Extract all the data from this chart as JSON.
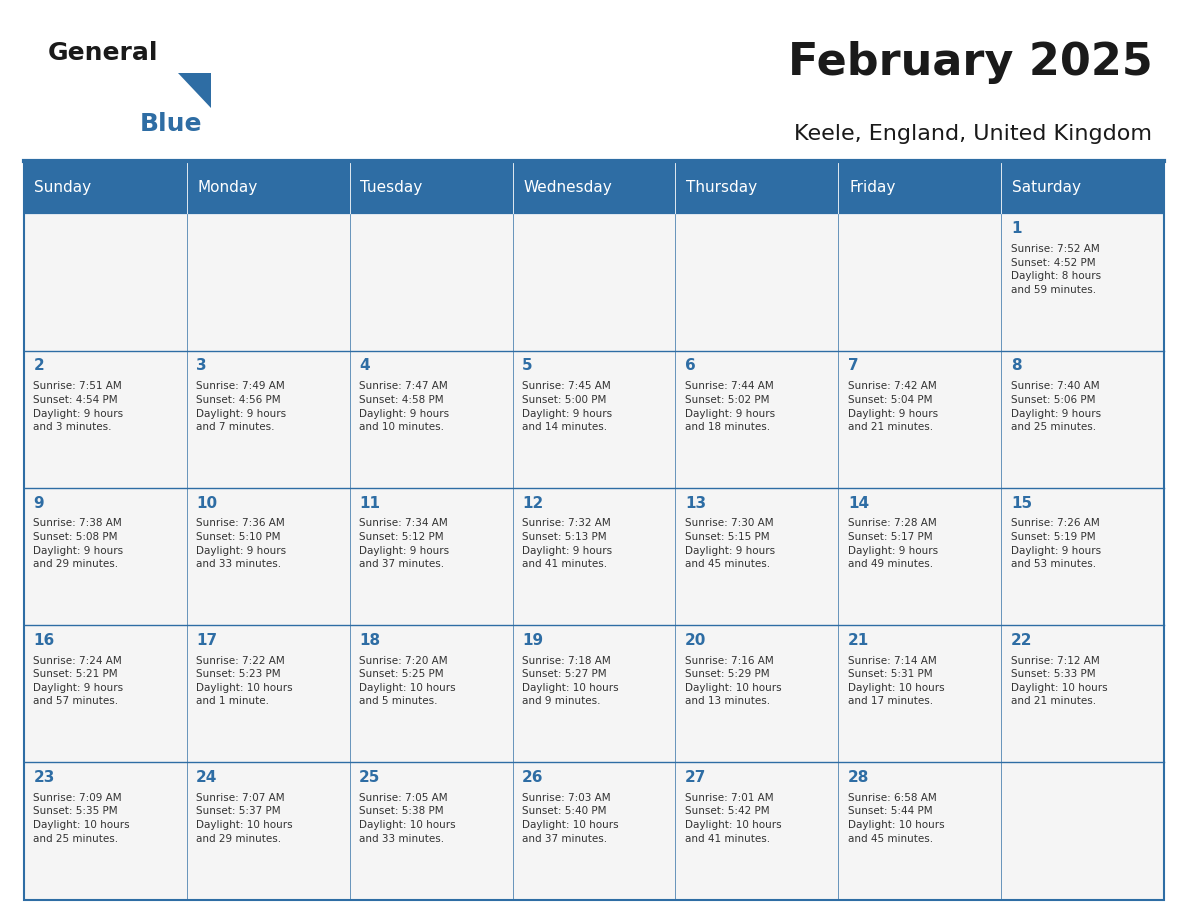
{
  "title": "February 2025",
  "subtitle": "Keele, England, United Kingdom",
  "days_of_week": [
    "Sunday",
    "Monday",
    "Tuesday",
    "Wednesday",
    "Thursday",
    "Friday",
    "Saturday"
  ],
  "header_bg": "#2E6DA4",
  "header_text": "#FFFFFF",
  "cell_bg": "#F5F5F5",
  "border_color": "#2E6DA4",
  "day_number_color": "#2E6DA4",
  "text_color": "#333333",
  "title_color": "#1a1a1a",
  "logo_text_color": "#1a1a1a",
  "logo_blue_color": "#2E6DA4",
  "weeks": [
    [
      {
        "day": null,
        "info": null
      },
      {
        "day": null,
        "info": null
      },
      {
        "day": null,
        "info": null
      },
      {
        "day": null,
        "info": null
      },
      {
        "day": null,
        "info": null
      },
      {
        "day": null,
        "info": null
      },
      {
        "day": 1,
        "info": "Sunrise: 7:52 AM\nSunset: 4:52 PM\nDaylight: 8 hours\nand 59 minutes."
      }
    ],
    [
      {
        "day": 2,
        "info": "Sunrise: 7:51 AM\nSunset: 4:54 PM\nDaylight: 9 hours\nand 3 minutes."
      },
      {
        "day": 3,
        "info": "Sunrise: 7:49 AM\nSunset: 4:56 PM\nDaylight: 9 hours\nand 7 minutes."
      },
      {
        "day": 4,
        "info": "Sunrise: 7:47 AM\nSunset: 4:58 PM\nDaylight: 9 hours\nand 10 minutes."
      },
      {
        "day": 5,
        "info": "Sunrise: 7:45 AM\nSunset: 5:00 PM\nDaylight: 9 hours\nand 14 minutes."
      },
      {
        "day": 6,
        "info": "Sunrise: 7:44 AM\nSunset: 5:02 PM\nDaylight: 9 hours\nand 18 minutes."
      },
      {
        "day": 7,
        "info": "Sunrise: 7:42 AM\nSunset: 5:04 PM\nDaylight: 9 hours\nand 21 minutes."
      },
      {
        "day": 8,
        "info": "Sunrise: 7:40 AM\nSunset: 5:06 PM\nDaylight: 9 hours\nand 25 minutes."
      }
    ],
    [
      {
        "day": 9,
        "info": "Sunrise: 7:38 AM\nSunset: 5:08 PM\nDaylight: 9 hours\nand 29 minutes."
      },
      {
        "day": 10,
        "info": "Sunrise: 7:36 AM\nSunset: 5:10 PM\nDaylight: 9 hours\nand 33 minutes."
      },
      {
        "day": 11,
        "info": "Sunrise: 7:34 AM\nSunset: 5:12 PM\nDaylight: 9 hours\nand 37 minutes."
      },
      {
        "day": 12,
        "info": "Sunrise: 7:32 AM\nSunset: 5:13 PM\nDaylight: 9 hours\nand 41 minutes."
      },
      {
        "day": 13,
        "info": "Sunrise: 7:30 AM\nSunset: 5:15 PM\nDaylight: 9 hours\nand 45 minutes."
      },
      {
        "day": 14,
        "info": "Sunrise: 7:28 AM\nSunset: 5:17 PM\nDaylight: 9 hours\nand 49 minutes."
      },
      {
        "day": 15,
        "info": "Sunrise: 7:26 AM\nSunset: 5:19 PM\nDaylight: 9 hours\nand 53 minutes."
      }
    ],
    [
      {
        "day": 16,
        "info": "Sunrise: 7:24 AM\nSunset: 5:21 PM\nDaylight: 9 hours\nand 57 minutes."
      },
      {
        "day": 17,
        "info": "Sunrise: 7:22 AM\nSunset: 5:23 PM\nDaylight: 10 hours\nand 1 minute."
      },
      {
        "day": 18,
        "info": "Sunrise: 7:20 AM\nSunset: 5:25 PM\nDaylight: 10 hours\nand 5 minutes."
      },
      {
        "day": 19,
        "info": "Sunrise: 7:18 AM\nSunset: 5:27 PM\nDaylight: 10 hours\nand 9 minutes."
      },
      {
        "day": 20,
        "info": "Sunrise: 7:16 AM\nSunset: 5:29 PM\nDaylight: 10 hours\nand 13 minutes."
      },
      {
        "day": 21,
        "info": "Sunrise: 7:14 AM\nSunset: 5:31 PM\nDaylight: 10 hours\nand 17 minutes."
      },
      {
        "day": 22,
        "info": "Sunrise: 7:12 AM\nSunset: 5:33 PM\nDaylight: 10 hours\nand 21 minutes."
      }
    ],
    [
      {
        "day": 23,
        "info": "Sunrise: 7:09 AM\nSunset: 5:35 PM\nDaylight: 10 hours\nand 25 minutes."
      },
      {
        "day": 24,
        "info": "Sunrise: 7:07 AM\nSunset: 5:37 PM\nDaylight: 10 hours\nand 29 minutes."
      },
      {
        "day": 25,
        "info": "Sunrise: 7:05 AM\nSunset: 5:38 PM\nDaylight: 10 hours\nand 33 minutes."
      },
      {
        "day": 26,
        "info": "Sunrise: 7:03 AM\nSunset: 5:40 PM\nDaylight: 10 hours\nand 37 minutes."
      },
      {
        "day": 27,
        "info": "Sunrise: 7:01 AM\nSunset: 5:42 PM\nDaylight: 10 hours\nand 41 minutes."
      },
      {
        "day": 28,
        "info": "Sunrise: 6:58 AM\nSunset: 5:44 PM\nDaylight: 10 hours\nand 45 minutes."
      },
      {
        "day": null,
        "info": null
      }
    ]
  ]
}
